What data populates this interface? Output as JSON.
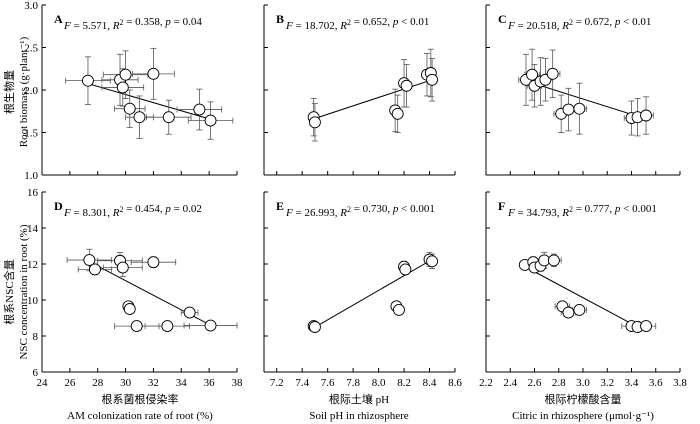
{
  "figure": {
    "left_ylabel_top": {
      "cn": "根生物量",
      "en": "Root biomass (g·plant⁻¹)"
    },
    "left_ylabel_bottom": {
      "cn": "根系NSC含量",
      "en": "NSC concentration in root (%)"
    },
    "columns": [
      {
        "xlabel_cn": "根系菌根侵染率",
        "xlabel_en": "AM colonization rate of root (%)"
      },
      {
        "xlabel_cn": "根际土壤 pH",
        "xlabel_en": "Soil pH in rhizosphere"
      },
      {
        "xlabel_cn": "根际柠檬酸含量",
        "xlabel_en": "Citric in rhizosphere (μmol·g⁻¹)"
      }
    ]
  },
  "chart_data": [
    {
      "panel": "A",
      "type": "scatter",
      "stat": {
        "F": "5.571",
        "R2": "0.358",
        "p": "p = 0.04"
      },
      "xlim": [
        24,
        38
      ],
      "ylim": [
        1.0,
        3.0
      ],
      "xticks": [],
      "yticks": [
        "1.0",
        "1.5",
        "2.0",
        "2.5",
        "3.0"
      ],
      "x": [
        27.3,
        29.6,
        30.0,
        29.8,
        32.0,
        30.3,
        31.0,
        33.1,
        35.3,
        36.1
      ],
      "y": [
        2.11,
        2.12,
        2.18,
        2.03,
        2.19,
        1.78,
        1.68,
        1.68,
        1.77,
        1.64
      ],
      "xerr": [
        1.6,
        1.3,
        1.6,
        1.5,
        1.5,
        1.1,
        1.0,
        1.6,
        1.6,
        1.6
      ],
      "yerr": [
        0.28,
        0.3,
        0.28,
        0.22,
        0.3,
        0.22,
        0.25,
        0.2,
        0.24,
        0.22
      ],
      "fit": [
        [
          27.0,
          2.09
        ],
        [
          36.0,
          1.66
        ]
      ]
    },
    {
      "panel": "B",
      "type": "scatter",
      "stat": {
        "F": "18.702",
        "R2": "0.652",
        "p": "p < 0.01"
      },
      "xlim": [
        7.1,
        8.6
      ],
      "ylim": [
        1.0,
        3.0
      ],
      "xticks": [],
      "yticks": [],
      "x": [
        7.49,
        7.5,
        8.13,
        8.15,
        8.2,
        8.22,
        8.38,
        8.41,
        8.42
      ],
      "y": [
        1.68,
        1.62,
        1.76,
        1.72,
        2.08,
        2.05,
        2.18,
        2.2,
        2.12
      ],
      "xerr": [
        0.02,
        0.02,
        0.02,
        0.02,
        0.02,
        0.02,
        0.02,
        0.02,
        0.02
      ],
      "yerr": [
        0.22,
        0.22,
        0.25,
        0.22,
        0.28,
        0.25,
        0.25,
        0.28,
        0.25
      ],
      "fit": [
        [
          7.49,
          1.66
        ],
        [
          8.42,
          2.12
        ]
      ]
    },
    {
      "panel": "C",
      "type": "scatter",
      "stat": {
        "F": "20.518",
        "R2": "0.672",
        "p": "p < 0.01"
      },
      "xlim": [
        2.2,
        3.8
      ],
      "ylim": [
        1.0,
        3.0
      ],
      "xticks": [],
      "yticks": [],
      "x": [
        2.53,
        2.58,
        2.6,
        2.65,
        2.69,
        2.75,
        2.82,
        2.88,
        2.97,
        3.4,
        3.45,
        3.52
      ],
      "y": [
        2.12,
        2.18,
        2.05,
        2.1,
        2.12,
        2.19,
        1.72,
        1.77,
        1.78,
        1.67,
        1.68,
        1.7
      ],
      "xerr": [
        0.06,
        0.06,
        0.06,
        0.06,
        0.06,
        0.06,
        0.06,
        0.06,
        0.06,
        0.06,
        0.06,
        0.06
      ],
      "yerr": [
        0.3,
        0.3,
        0.25,
        0.28,
        0.25,
        0.28,
        0.22,
        0.25,
        0.3,
        0.2,
        0.22,
        0.22
      ],
      "fit": [
        [
          2.52,
          2.11
        ],
        [
          3.52,
          1.66
        ]
      ]
    },
    {
      "panel": "D",
      "type": "scatter",
      "stat": {
        "F": "8.301",
        "R2": "0.454",
        "p": "p = 0.02"
      },
      "xlim": [
        24,
        38
      ],
      "ylim": [
        6,
        16
      ],
      "xticks": [
        "24",
        "26",
        "28",
        "30",
        "32",
        "34",
        "36",
        "38"
      ],
      "yticks": [
        "6",
        "8",
        "10",
        "12",
        "14",
        "16"
      ],
      "x": [
        27.4,
        27.8,
        29.6,
        29.8,
        32.0,
        30.2,
        30.3,
        30.8,
        33.0,
        34.6,
        36.1
      ],
      "y": [
        12.22,
        11.7,
        12.18,
        11.8,
        12.1,
        9.65,
        9.5,
        8.55,
        8.55,
        9.3,
        8.58
      ],
      "xerr": [
        1.6,
        1.2,
        1.6,
        1.4,
        1.6,
        0.2,
        0.2,
        1.6,
        1.6,
        0.6,
        1.9
      ],
      "yerr": [
        0.6,
        0.3,
        0.45,
        0.5,
        0.3,
        0.25,
        0.2,
        0.2,
        0.2,
        0.2,
        0.25
      ],
      "fit": [
        [
          27.6,
          12.05
        ],
        [
          36.1,
          8.6
        ]
      ]
    },
    {
      "panel": "E",
      "type": "scatter",
      "stat": {
        "F": "26.993",
        "R2": "0.730",
        "p": "p < 0.001"
      },
      "xlim": [
        7.1,
        8.6
      ],
      "ylim": [
        6,
        16
      ],
      "xticks": [
        "7.2",
        "7.4",
        "7.6",
        "7.8",
        "8.0",
        "8.2",
        "8.4",
        "8.6"
      ],
      "yticks": [],
      "x": [
        7.49,
        7.5,
        8.14,
        8.16,
        8.2,
        8.21,
        8.4,
        8.42
      ],
      "y": [
        8.55,
        8.5,
        9.65,
        9.45,
        11.85,
        11.7,
        12.25,
        12.15
      ],
      "xerr": [
        0.03,
        0.03,
        0.02,
        0.02,
        0.02,
        0.02,
        0.03,
        0.03
      ],
      "yerr": [
        0.25,
        0.2,
        0.25,
        0.2,
        0.3,
        0.3,
        0.4,
        0.4
      ],
      "fit": [
        [
          7.49,
          8.45
        ],
        [
          8.42,
          12.25
        ]
      ]
    },
    {
      "panel": "F",
      "type": "scatter",
      "stat": {
        "F": "34.793",
        "R2": "0.777",
        "p": "p < 0.001"
      },
      "xlim": [
        2.2,
        3.8
      ],
      "ylim": [
        6,
        16
      ],
      "xticks": [
        "2.2",
        "2.4",
        "2.6",
        "2.8",
        "3.0",
        "3.2",
        "3.4",
        "3.6",
        "3.8"
      ],
      "yticks": [],
      "x": [
        2.52,
        2.59,
        2.6,
        2.65,
        2.68,
        2.76,
        2.83,
        2.88,
        2.97,
        3.4,
        3.45,
        3.52
      ],
      "y": [
        11.95,
        12.1,
        11.8,
        11.9,
        12.2,
        12.2,
        9.65,
        9.3,
        9.45,
        8.55,
        8.5,
        8.55
      ],
      "xerr": [
        0.04,
        0.04,
        0.04,
        0.04,
        0.04,
        0.06,
        0.06,
        0.06,
        0.06,
        0.08,
        0.08,
        0.08
      ],
      "yerr": [
        0.25,
        0.3,
        0.25,
        0.3,
        0.45,
        0.35,
        0.2,
        0.2,
        0.2,
        0.2,
        0.2,
        0.2
      ],
      "fit": [
        [
          2.55,
          11.75
        ],
        [
          3.52,
          8.25
        ]
      ]
    }
  ]
}
